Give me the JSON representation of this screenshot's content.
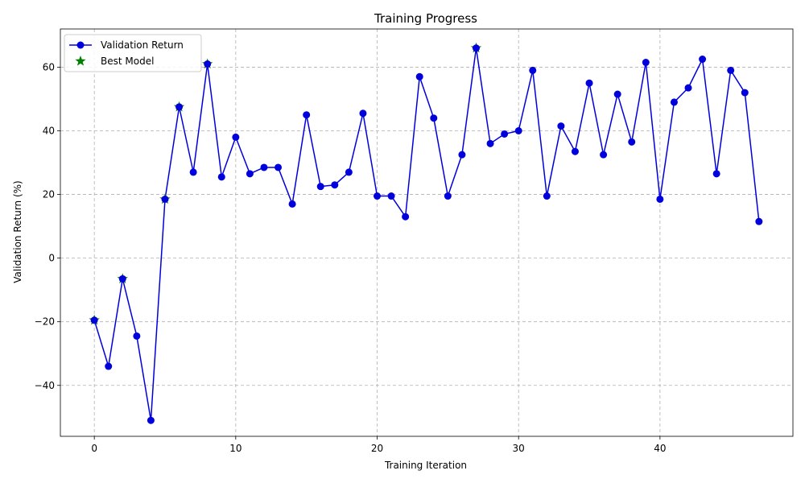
{
  "chart_data": {
    "type": "line",
    "title": "Training Progress",
    "xlabel": "Training Iteration",
    "ylabel": "Validation Return (%)",
    "xlim": [
      -2.4,
      49.4
    ],
    "ylim": [
      -56,
      72
    ],
    "xticks": [
      0,
      10,
      20,
      30,
      40
    ],
    "yticks": [
      -40,
      -20,
      0,
      20,
      40,
      60
    ],
    "xtick_labels": [
      "0",
      "10",
      "20",
      "30",
      "40"
    ],
    "ytick_labels": [
      "−40",
      "−20",
      "0",
      "20",
      "40",
      "60"
    ],
    "grid": true,
    "legend_position": "top-left",
    "series": [
      {
        "name": "Validation Return",
        "kind": "line-marker",
        "color": "#0000dd",
        "x": [
          0,
          1,
          2,
          3,
          4,
          5,
          6,
          7,
          8,
          9,
          10,
          11,
          12,
          13,
          14,
          15,
          16,
          17,
          18,
          19,
          20,
          21,
          22,
          23,
          24,
          25,
          26,
          27,
          28,
          29,
          30,
          31,
          32,
          33,
          34,
          35,
          36,
          37,
          38,
          39,
          40,
          41,
          42,
          43,
          44,
          45,
          46,
          47
        ],
        "y": [
          -19.5,
          -34,
          -6.5,
          -24.5,
          -51,
          18.5,
          47.5,
          27,
          61,
          25.5,
          38,
          26.5,
          28.5,
          28.5,
          17,
          45,
          22.5,
          23,
          27,
          45.5,
          19.5,
          19.5,
          13,
          57,
          44,
          19.5,
          32.5,
          66,
          36,
          39,
          40,
          59,
          19.5,
          41.5,
          33.5,
          55,
          32.5,
          51.5,
          36.5,
          61.5,
          18.5,
          49,
          53.5,
          62.5,
          26.5,
          59,
          52,
          11.5
        ]
      },
      {
        "name": "Best Model",
        "kind": "star",
        "color": "#008000",
        "x": [
          0,
          2,
          5,
          6,
          8,
          27
        ],
        "y": [
          -19.5,
          -6.5,
          18.5,
          47.5,
          61,
          66
        ]
      }
    ]
  }
}
